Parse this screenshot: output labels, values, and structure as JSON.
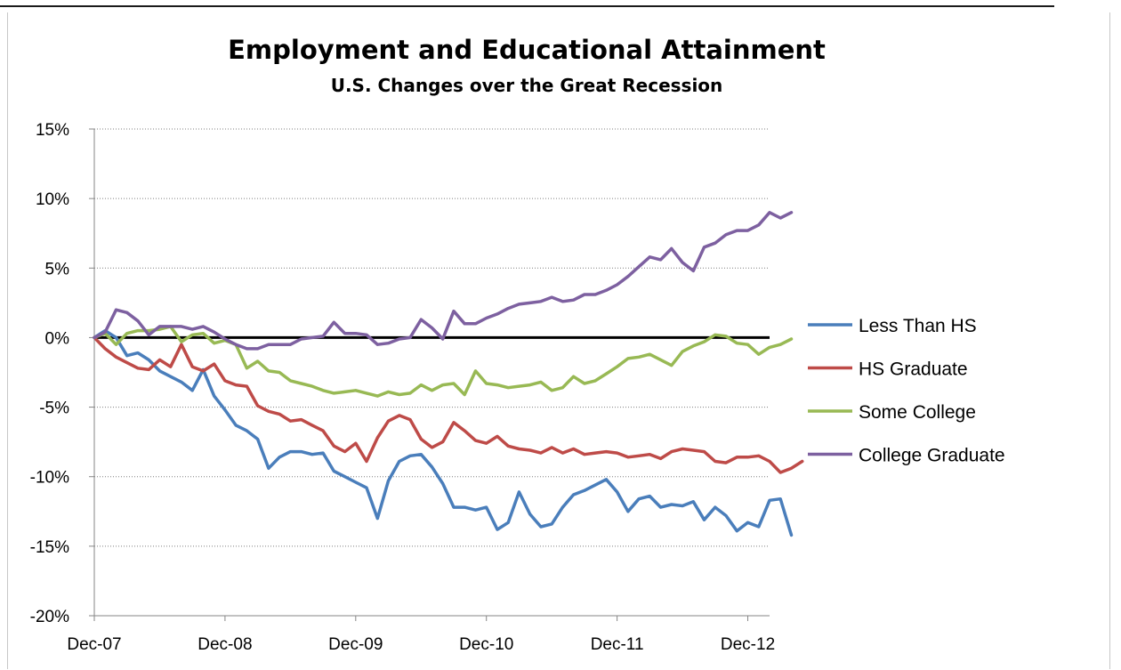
{
  "chart_data": {
    "type": "line",
    "title": "Employment and Educational Attainment",
    "subtitle": "U.S. Changes over the Great Recession",
    "xlabel": "",
    "ylabel": "",
    "x_tick_labels": [
      "Dec-07",
      "Dec-08",
      "Dec-09",
      "Dec-10",
      "Dec-11",
      "Dec-12"
    ],
    "y_tick_labels": [
      "15%",
      "10%",
      "5%",
      "0%",
      "-5%",
      "-10%",
      "-15%",
      "-20%"
    ],
    "ylim": [
      -20,
      15
    ],
    "xlim_months": [
      0,
      62
    ],
    "grid": "horizontal dotted",
    "legend_position": "right",
    "series": [
      {
        "name": "Less Than HS",
        "color": "#4a7ebb",
        "values": [
          0,
          0.5,
          0,
          -1.3,
          -1.1,
          -1.6,
          -2.4,
          -2.8,
          -3.2,
          -3.8,
          -2.3,
          -4.2,
          -5.2,
          -6.3,
          -6.7,
          -7.3,
          -9.4,
          -8.6,
          -8.2,
          -8.2,
          -8.4,
          -8.3,
          -9.6,
          -10,
          -10.4,
          -10.8,
          -13,
          -10.3,
          -8.9,
          -8.5,
          -8.4,
          -9.3,
          -10.5,
          -12.2,
          -12.2,
          -12.4,
          -12.2,
          -13.8,
          -13.3,
          -11.1,
          -12.7,
          -13.6,
          -13.4,
          -12.2,
          -11.3,
          -11,
          -10.6,
          -10.2,
          -11.1,
          -12.5,
          -11.6,
          -11.4,
          -12.2,
          -12,
          -12.1,
          -11.8,
          -13.1,
          -12.2,
          -12.8,
          -13.9,
          -13.3,
          -13.6,
          -11.7,
          -11.6,
          -14.2
        ]
      },
      {
        "name": "HS Graduate",
        "color": "#be4b48",
        "values": [
          0,
          -0.8,
          -1.4,
          -1.8,
          -2.2,
          -2.3,
          -1.6,
          -2.1,
          -0.5,
          -2.1,
          -2.4,
          -1.9,
          -3.1,
          -3.4,
          -3.5,
          -4.9,
          -5.3,
          -5.5,
          -6,
          -5.9,
          -6.3,
          -6.7,
          -7.8,
          -8.2,
          -7.6,
          -8.9,
          -7.2,
          -6,
          -5.6,
          -5.9,
          -7.3,
          -7.9,
          -7.5,
          -6.1,
          -6.7,
          -7.4,
          -7.6,
          -7.1,
          -7.8,
          -8,
          -8.1,
          -8.3,
          -7.9,
          -8.3,
          -8,
          -8.4,
          -8.3,
          -8.2,
          -8.3,
          -8.6,
          -8.5,
          -8.4,
          -8.7,
          -8.2,
          -8,
          -8.1,
          -8.2,
          -8.9,
          -9,
          -8.6,
          -8.6,
          -8.5,
          -8.9,
          -9.7,
          -9.4,
          -8.9
        ]
      },
      {
        "name": "Some College",
        "color": "#98b954",
        "values": [
          0,
          0.3,
          -0.5,
          0.3,
          0.5,
          0.5,
          0.6,
          0.8,
          -0.3,
          0.2,
          0.3,
          -0.4,
          -0.2,
          -0.5,
          -2.2,
          -1.7,
          -2.4,
          -2.5,
          -3.1,
          -3.3,
          -3.5,
          -3.8,
          -4,
          -3.9,
          -3.8,
          -4,
          -4.2,
          -3.9,
          -4.1,
          -4,
          -3.4,
          -3.8,
          -3.4,
          -3.3,
          -4.1,
          -2.4,
          -3.3,
          -3.4,
          -3.6,
          -3.5,
          -3.4,
          -3.2,
          -3.8,
          -3.6,
          -2.8,
          -3.3,
          -3.1,
          -2.6,
          -2.1,
          -1.5,
          -1.4,
          -1.2,
          -1.6,
          -2,
          -1,
          -0.6,
          -0.3,
          0.2,
          0.1,
          -0.4,
          -0.5,
          -1.2,
          -0.7,
          -0.5,
          -0.1
        ]
      },
      {
        "name": "College Graduate",
        "color": "#7d60a0",
        "values": [
          0,
          0.4,
          2,
          1.8,
          1.2,
          0.2,
          0.8,
          0.8,
          0.8,
          0.6,
          0.8,
          0.4,
          -0.1,
          -0.5,
          -0.8,
          -0.8,
          -0.5,
          -0.5,
          -0.5,
          -0.1,
          0,
          0.1,
          1.1,
          0.3,
          0.3,
          0.2,
          -0.5,
          -0.4,
          -0.1,
          0,
          1.3,
          0.7,
          -0.1,
          1.9,
          1,
          1,
          1.4,
          1.7,
          2.1,
          2.4,
          2.5,
          2.6,
          2.9,
          2.6,
          2.7,
          3.1,
          3.1,
          3.4,
          3.8,
          4.4,
          5.1,
          5.8,
          5.6,
          6.4,
          5.4,
          4.8,
          6.5,
          6.8,
          7.4,
          7.7,
          7.7,
          8.1,
          9,
          8.6,
          9
        ]
      }
    ]
  }
}
